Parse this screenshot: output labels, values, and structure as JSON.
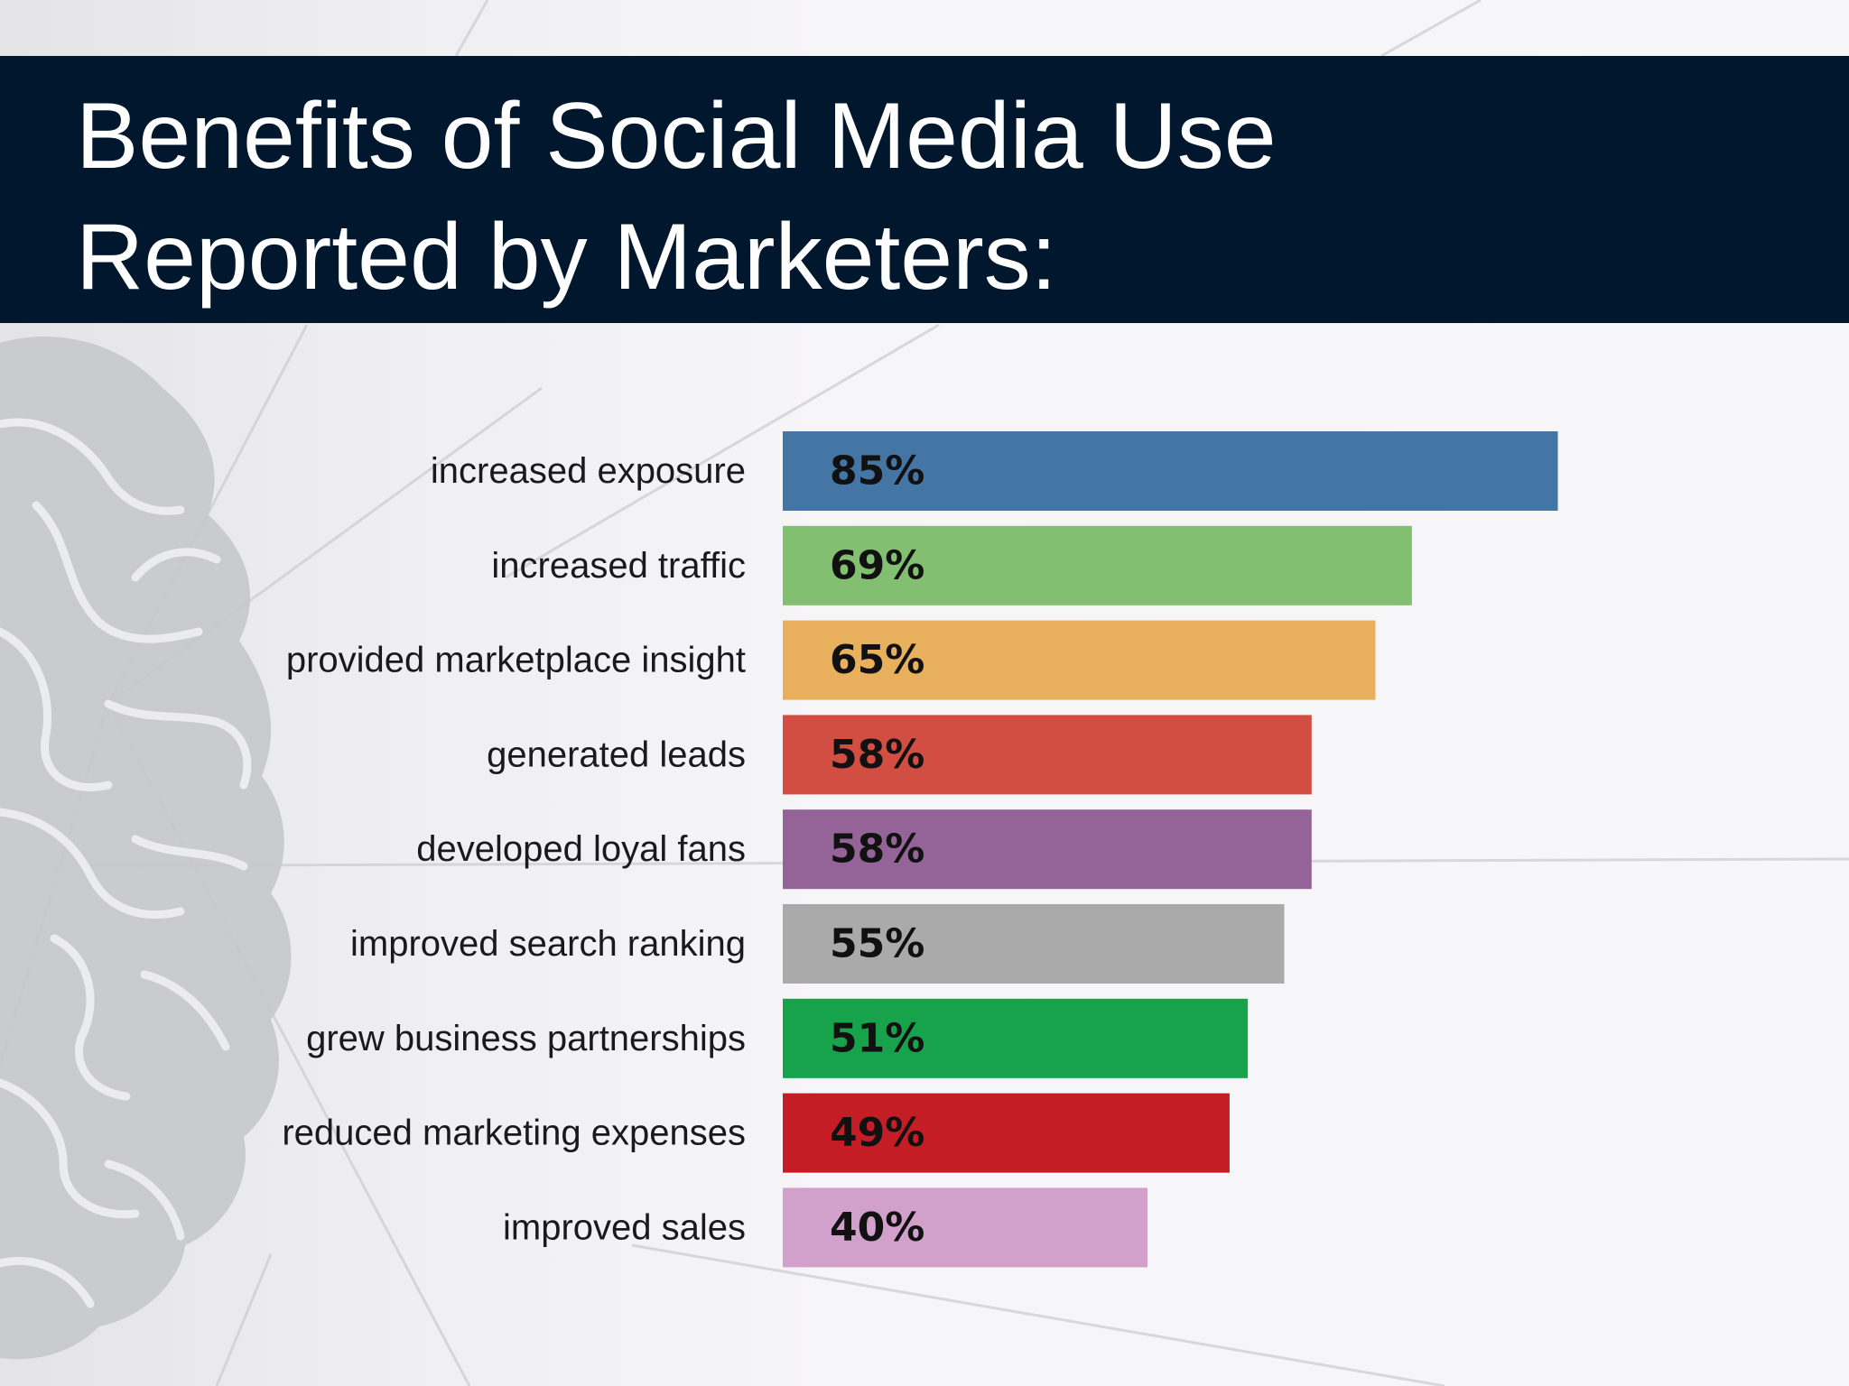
{
  "title": {
    "line1": "Benefits of Social Media Use",
    "line2": "Reported by Marketers:"
  },
  "colors": {
    "title_band": "#00172e",
    "title_text": "#ffffff",
    "background": "#f5f4f7"
  },
  "chart_data": {
    "type": "bar",
    "orientation": "horizontal",
    "categories": [
      "increased exposure",
      "increased traffic",
      "provided marketplace insight",
      "generated leads",
      "developed loyal fans",
      "improved search ranking",
      "grew business partnerships",
      "reduced marketing expenses",
      "improved sales"
    ],
    "values": [
      85,
      69,
      65,
      58,
      58,
      55,
      51,
      49,
      40
    ],
    "data_labels": [
      "85%",
      "69%",
      "65%",
      "58%",
      "58%",
      "55%",
      "51%",
      "49%",
      "40%"
    ],
    "colors": [
      "#4375a5",
      "#82bf71",
      "#e8b05d",
      "#d24d42",
      "#946398",
      "#aaaaab",
      "#16a34c",
      "#c41d26",
      "#d1a1cc"
    ],
    "xlim": [
      0,
      100
    ],
    "grid": false,
    "legend": "none"
  }
}
